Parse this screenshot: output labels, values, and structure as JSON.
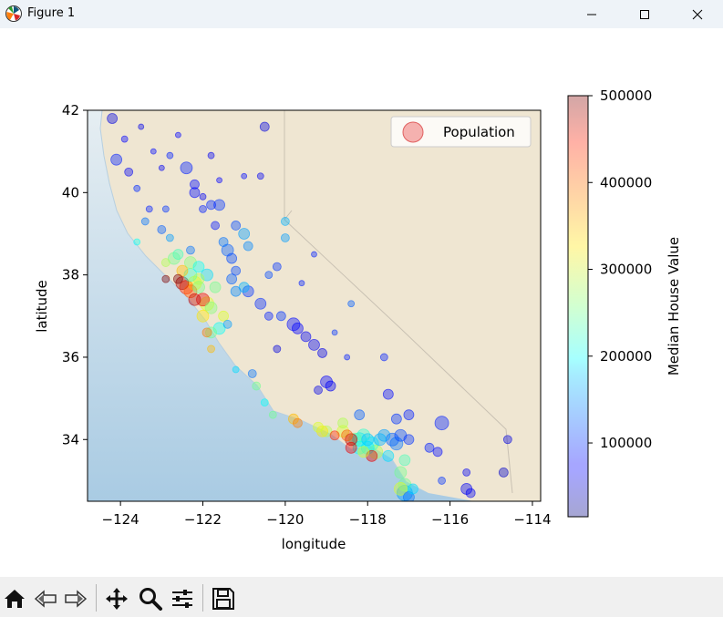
{
  "window": {
    "title": "Figure 1",
    "app_icon": "matplotlib-logo-icon",
    "controls": [
      "minimize-icon",
      "maximize-icon",
      "close-icon"
    ]
  },
  "toolbar": {
    "buttons": [
      "home-icon",
      "back-arrow-icon",
      "forward-arrow-icon",
      "pan-move-icon",
      "zoom-magnifier-icon",
      "configure-subplots-icon",
      "save-disk-icon"
    ]
  },
  "chart_data": {
    "type": "scatter",
    "title": "",
    "xlabel": "longitude",
    "ylabel": "latitude",
    "xlim": [
      -124.8,
      -113.8
    ],
    "ylim": [
      32.5,
      42.0
    ],
    "xticks": [
      -124,
      -122,
      -120,
      -118,
      -116,
      -114
    ],
    "xtick_labels": [
      "−124",
      "−122",
      "−120",
      "−118",
      "−116",
      "−114"
    ],
    "yticks": [
      34,
      36,
      38,
      40,
      42
    ],
    "ytick_labels": [
      "34",
      "36",
      "38",
      "40",
      "42"
    ],
    "background": "map of California",
    "grid": false,
    "legend": {
      "entries": [
        "Population"
      ],
      "placement": "top-right",
      "marker_color": "#f08080"
    },
    "colorbar": {
      "label": "Median House Value",
      "colormap": "jet",
      "range": [
        15000,
        500000
      ],
      "ticks": [
        100000,
        200000,
        300000,
        400000,
        500000
      ],
      "tick_labels": [
        "100000",
        "200000",
        "300000",
        "400000",
        "500000"
      ]
    },
    "marker_alpha": 0.4,
    "point_format": "[longitude, latitude, median_house_value, population_marker_size]",
    "points": [
      [
        -124.2,
        41.8,
        60000,
        8
      ],
      [
        -123.9,
        41.3,
        75000,
        4
      ],
      [
        -124.1,
        40.8,
        90000,
        9
      ],
      [
        -123.8,
        40.5,
        70000,
        6
      ],
      [
        -123.5,
        41.6,
        65000,
        3
      ],
      [
        -123.2,
        41.0,
        80000,
        3
      ],
      [
        -123.0,
        40.6,
        70000,
        3
      ],
      [
        -122.6,
        41.4,
        75000,
        3
      ],
      [
        -122.4,
        40.6,
        90000,
        10
      ],
      [
        -122.2,
        40.2,
        80000,
        7
      ],
      [
        -122.0,
        39.9,
        70000,
        4
      ],
      [
        -121.6,
        40.3,
        75000,
        3
      ],
      [
        -121.0,
        40.4,
        80000,
        3
      ],
      [
        -120.6,
        40.4,
        70000,
        4
      ],
      [
        -120.5,
        41.6,
        60000,
        7
      ],
      [
        -122.3,
        38.6,
        130000,
        6
      ],
      [
        -122.0,
        39.6,
        90000,
        5
      ],
      [
        -121.8,
        39.7,
        95000,
        7
      ],
      [
        -121.6,
        39.7,
        100000,
        9
      ],
      [
        -121.7,
        39.2,
        85000,
        6
      ],
      [
        -121.2,
        39.2,
        110000,
        7
      ],
      [
        -121.0,
        39.0,
        150000,
        9
      ],
      [
        -120.9,
        38.7,
        140000,
        7
      ],
      [
        -121.4,
        38.6,
        120000,
        10
      ],
      [
        -121.3,
        38.4,
        110000,
        8
      ],
      [
        -121.5,
        38.8,
        130000,
        7
      ],
      [
        -121.2,
        38.1,
        110000,
        7
      ],
      [
        -121.3,
        37.9,
        120000,
        8
      ],
      [
        -120.9,
        37.6,
        100000,
        9
      ],
      [
        -121.0,
        37.7,
        160000,
        8
      ],
      [
        -120.6,
        37.3,
        95000,
        9
      ],
      [
        -120.4,
        37.0,
        90000,
        6
      ],
      [
        -120.1,
        37.0,
        100000,
        7
      ],
      [
        -119.8,
        36.8,
        80000,
        11
      ],
      [
        -119.7,
        36.7,
        75000,
        9
      ],
      [
        -119.5,
        36.5,
        70000,
        8
      ],
      [
        -119.3,
        36.3,
        70000,
        9
      ],
      [
        -119.1,
        36.1,
        65000,
        7
      ],
      [
        -119.0,
        35.4,
        75000,
        10
      ],
      [
        -118.9,
        35.3,
        70000,
        8
      ],
      [
        -119.2,
        35.2,
        65000,
        6
      ],
      [
        -120.2,
        36.2,
        60000,
        5
      ],
      [
        -120.8,
        35.6,
        130000,
        6
      ],
      [
        -120.7,
        35.3,
        250000,
        6
      ],
      [
        -120.5,
        34.9,
        200000,
        5
      ],
      [
        -119.8,
        34.5,
        350000,
        8
      ],
      [
        -119.7,
        34.4,
        380000,
        7
      ],
      [
        -119.2,
        34.3,
        300000,
        8
      ],
      [
        -119.0,
        34.2,
        280000,
        9
      ],
      [
        -118.8,
        34.1,
        420000,
        7
      ],
      [
        -118.6,
        34.2,
        300000,
        10
      ],
      [
        -118.5,
        34.1,
        400000,
        9
      ],
      [
        -118.4,
        34.0,
        480000,
        10
      ],
      [
        -118.3,
        34.0,
        250000,
        11
      ],
      [
        -118.2,
        34.0,
        180000,
        12
      ],
      [
        -118.1,
        34.1,
        220000,
        11
      ],
      [
        -118.0,
        34.0,
        170000,
        10
      ],
      [
        -117.9,
        33.9,
        200000,
        12
      ],
      [
        -117.8,
        33.7,
        280000,
        12
      ],
      [
        -117.9,
        33.6,
        450000,
        9
      ],
      [
        -118.4,
        33.8,
        450000,
        9
      ],
      [
        -118.2,
        33.8,
        200000,
        11
      ],
      [
        -118.1,
        33.7,
        300000,
        9
      ],
      [
        -117.6,
        34.1,
        150000,
        10
      ],
      [
        -117.4,
        34.0,
        120000,
        11
      ],
      [
        -117.2,
        34.1,
        110000,
        10
      ],
      [
        -117.0,
        34.0,
        100000,
        8
      ],
      [
        -117.3,
        33.9,
        130000,
        11
      ],
      [
        -117.5,
        33.6,
        180000,
        9
      ],
      [
        -117.2,
        33.2,
        250000,
        10
      ],
      [
        -117.1,
        32.9,
        250000,
        11
      ],
      [
        -117.2,
        32.8,
        300000,
        11
      ],
      [
        -117.1,
        32.7,
        150000,
        14
      ],
      [
        -117.0,
        32.6,
        130000,
        9
      ],
      [
        -116.9,
        32.8,
        180000,
        8
      ],
      [
        -116.5,
        33.8,
        90000,
        7
      ],
      [
        -116.3,
        33.7,
        80000,
        7
      ],
      [
        -116.2,
        33.0,
        100000,
        5
      ],
      [
        -115.6,
        32.8,
        70000,
        9
      ],
      [
        -115.5,
        32.7,
        70000,
        7
      ],
      [
        -115.6,
        33.2,
        70000,
        5
      ],
      [
        -114.6,
        34.0,
        60000,
        6
      ],
      [
        -114.7,
        33.2,
        50000,
        7
      ],
      [
        -116.2,
        34.4,
        90000,
        12
      ],
      [
        -117.0,
        34.6,
        90000,
        8
      ],
      [
        -117.3,
        34.5,
        100000,
        8
      ],
      [
        -117.5,
        35.1,
        80000,
        8
      ],
      [
        -118.2,
        34.6,
        120000,
        8
      ],
      [
        -118.5,
        36.0,
        90000,
        3
      ],
      [
        -118.8,
        36.6,
        100000,
        3
      ],
      [
        -119.6,
        37.8,
        90000,
        3
      ],
      [
        -120.2,
        38.2,
        100000,
        6
      ],
      [
        -120.0,
        38.9,
        150000,
        6
      ],
      [
        -119.3,
        38.5,
        90000,
        3
      ],
      [
        -122.5,
        37.8,
        480000,
        11
      ],
      [
        -122.4,
        37.7,
        420000,
        12
      ],
      [
        -122.3,
        37.6,
        400000,
        11
      ],
      [
        -122.2,
        37.8,
        320000,
        12
      ],
      [
        -122.1,
        37.7,
        250000,
        10
      ],
      [
        -122.0,
        37.4,
        450000,
        11
      ],
      [
        -121.9,
        37.3,
        300000,
        12
      ],
      [
        -121.8,
        37.2,
        260000,
        10
      ],
      [
        -122.2,
        37.4,
        470000,
        10
      ],
      [
        -122.1,
        37.9,
        280000,
        9
      ],
      [
        -122.3,
        38.0,
        220000,
        11
      ],
      [
        -122.5,
        38.1,
        350000,
        9
      ],
      [
        -122.7,
        38.4,
        250000,
        10
      ],
      [
        -122.6,
        38.5,
        230000,
        8
      ],
      [
        -122.9,
        38.3,
        280000,
        6
      ],
      [
        -122.3,
        38.3,
        260000,
        10
      ],
      [
        -122.1,
        38.2,
        200000,
        9
      ],
      [
        -121.9,
        38.0,
        180000,
        10
      ],
      [
        -121.7,
        37.7,
        250000,
        9
      ],
      [
        -121.8,
        36.6,
        250000,
        9
      ],
      [
        -121.9,
        36.6,
        380000,
        7
      ],
      [
        -121.6,
        36.7,
        200000,
        10
      ],
      [
        -121.4,
        36.8,
        150000,
        6
      ],
      [
        -122.0,
        37.0,
        330000,
        10
      ],
      [
        -121.5,
        37.0,
        300000,
        8
      ],
      [
        -121.8,
        36.2,
        350000,
        5
      ],
      [
        -121.2,
        37.6,
        140000,
        8
      ],
      [
        -122.8,
        38.9,
        150000,
        5
      ],
      [
        -123.4,
        39.3,
        130000,
        5
      ],
      [
        -123.0,
        39.1,
        120000,
        6
      ],
      [
        -122.9,
        39.6,
        100000,
        4
      ],
      [
        -123.6,
        38.8,
        200000,
        4
      ],
      [
        -122.2,
        40.0,
        80000,
        8
      ],
      [
        -121.8,
        40.9,
        70000,
        4
      ],
      [
        -122.8,
        40.9,
        90000,
        4
      ],
      [
        -123.6,
        40.1,
        95000,
        4
      ],
      [
        -123.3,
        39.6,
        90000,
        4
      ],
      [
        -120.0,
        39.3,
        160000,
        6
      ],
      [
        -120.4,
        38.0,
        110000,
        5
      ],
      [
        -118.4,
        37.3,
        120000,
        4
      ],
      [
        -117.6,
        36.0,
        90000,
        5
      ],
      [
        -117.1,
        33.5,
        230000,
        9
      ],
      [
        -118.6,
        34.4,
        280000,
        8
      ],
      [
        -118.0,
        33.8,
        190000,
        11
      ],
      [
        -117.7,
        34.0,
        160000,
        10
      ],
      [
        -120.3,
        34.6,
        250000,
        5
      ],
      [
        -122.9,
        37.9,
        500000,
        5
      ],
      [
        -122.6,
        37.9,
        500000,
        7
      ],
      [
        -119.1,
        34.2,
        330000,
        9
      ],
      [
        -121.2,
        35.7,
        180000,
        4
      ]
    ]
  }
}
